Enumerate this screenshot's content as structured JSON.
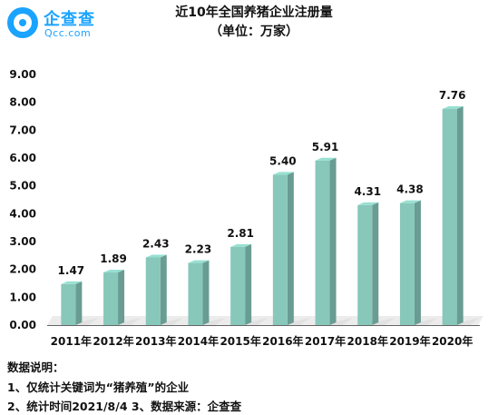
{
  "logo": {
    "name": "企查查",
    "domain": "Qcc.com"
  },
  "chart_data": {
    "type": "bar",
    "title": "近10年全国养猪企业注册量",
    "subtitle": "（单位：万家）",
    "categories": [
      "2011年",
      "2012年",
      "2013年",
      "2014年",
      "2015年",
      "2016年",
      "2017年",
      "2018年",
      "2019年",
      "2020年"
    ],
    "values": [
      1.47,
      1.89,
      2.43,
      2.23,
      2.81,
      5.4,
      5.91,
      4.31,
      4.38,
      7.76
    ],
    "value_labels": [
      "1.47",
      "1.89",
      "2.43",
      "2.23",
      "2.81",
      "5.40",
      "5.91",
      "4.31",
      "4.38",
      "7.76"
    ],
    "y_ticks": [
      "0.00",
      "1.00",
      "2.00",
      "3.00",
      "4.00",
      "5.00",
      "6.00",
      "7.00",
      "8.00",
      "9.00"
    ],
    "ylim": [
      0,
      9
    ],
    "grid": false,
    "bar_color": "#87c8bb"
  },
  "notes": {
    "heading": "数据说明：",
    "line1": "1、仅统计关键词为“猪养殖”的企业",
    "line2": "2、统计时间2021/8/4   3、数据来源：企查查"
  }
}
